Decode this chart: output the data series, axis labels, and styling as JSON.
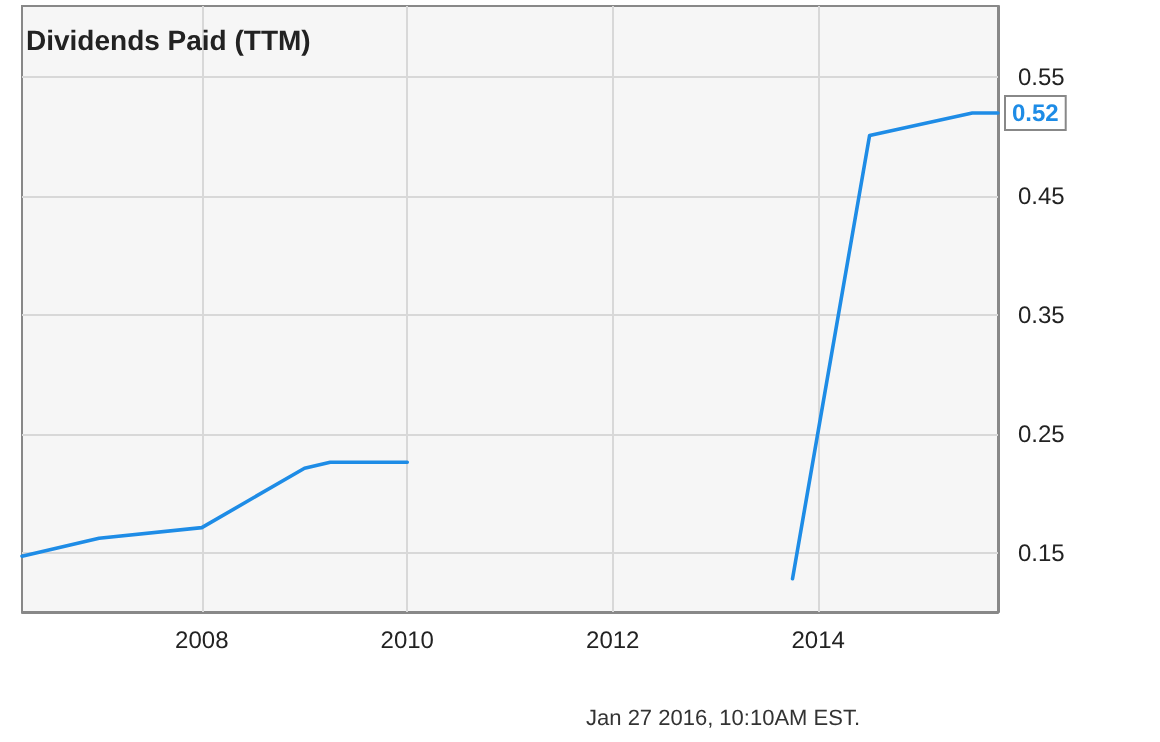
{
  "chart_data": {
    "type": "line",
    "title": "Dividends Paid (TTM)",
    "x": [
      2006.25,
      2007.0,
      2008.0,
      2009.0,
      2009.25,
      2010.0,
      2011.0,
      2013.75,
      2014.5,
      2015.5,
      2015.75
    ],
    "series": [
      {
        "color": "#1e8ce6",
        "values": [
          0.147,
          0.162,
          0.171,
          0.221,
          0.226,
          0.226,
          null,
          0.128,
          0.501,
          0.52,
          0.52
        ],
        "value_labels": [
          null,
          null,
          null,
          null,
          null,
          null,
          null,
          null,
          null,
          null,
          "0.52"
        ]
      }
    ],
    "xlim": [
      2006.25,
      2015.75
    ],
    "xticks": [
      2008,
      2010,
      2012,
      2014
    ],
    "ylim": [
      0.1,
      0.61
    ],
    "yticks": [
      0.15,
      0.25,
      0.35,
      0.45,
      0.55
    ],
    "grid": true,
    "marker": "none",
    "annotations": [
      "Jan 27 2016, 10:10AM EST."
    ]
  }
}
